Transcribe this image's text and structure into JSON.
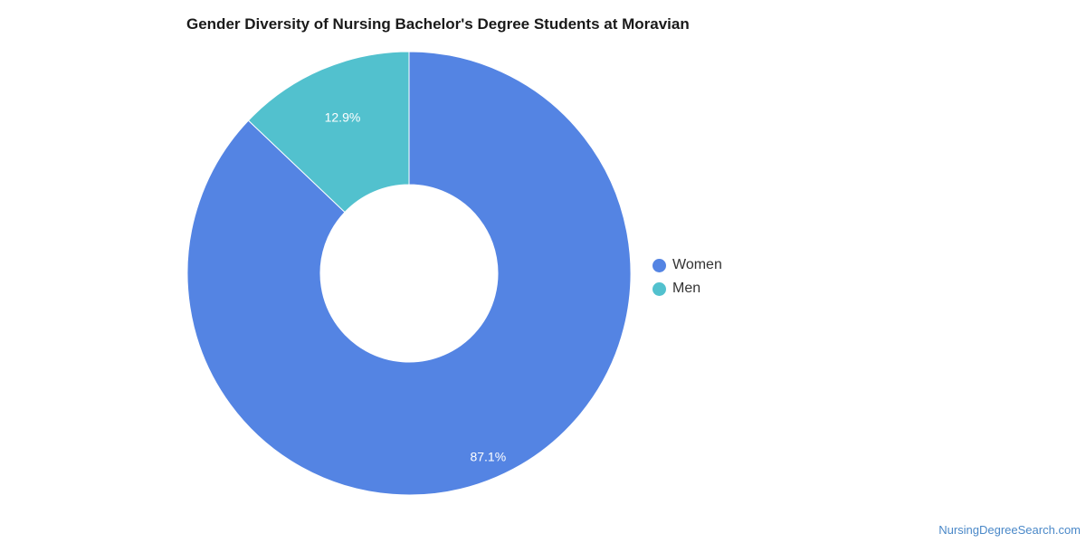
{
  "chart_data": {
    "type": "pie",
    "variant": "donut",
    "title": "Gender Diversity of Nursing Bachelor's Degree Students at Moravian",
    "series": [
      {
        "name": "Women",
        "value": 87.1,
        "label": "87.1%",
        "color": "#5484e3"
      },
      {
        "name": "Men",
        "value": 12.9,
        "label": "12.9%",
        "color": "#52c1ce"
      }
    ],
    "legend_position": "right"
  },
  "watermark": "NursingDegreeSearch.com"
}
